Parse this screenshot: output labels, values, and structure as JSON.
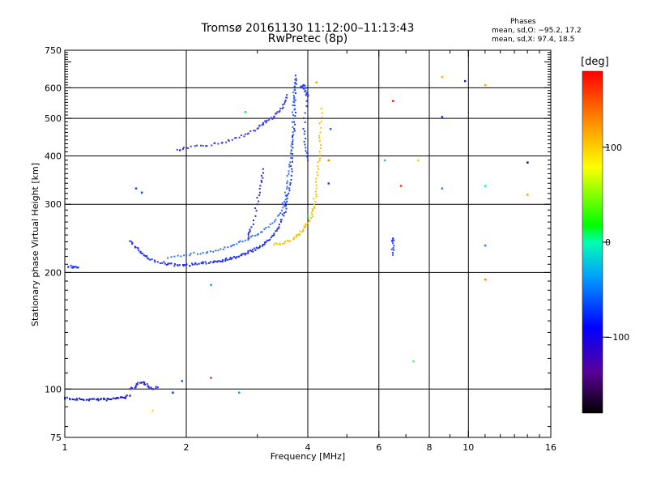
{
  "header": {
    "title_line1": "Tromsø 20161130 11:12:00–11:13:43",
    "title_line2": "RwPretec (8p)",
    "phases_heading": "Phases",
    "phases_o": "mean, sd,O: −95.2, 17.2",
    "phases_x": "mean, sd,X:  97.4, 18.5"
  },
  "colorbar": {
    "label": "[deg]",
    "ticks": [
      "100",
      "0",
      "−100"
    ],
    "tick_values": [
      100,
      0,
      -100
    ],
    "range": [
      -180,
      180
    ]
  },
  "chart_data": {
    "type": "scatter",
    "xlabel": "Frequency [MHz]",
    "ylabel": "Stationary phase Virtual Height [km]",
    "xscale": "log",
    "yscale": "log",
    "xlim": [
      1,
      16
    ],
    "ylim": [
      75,
      750
    ],
    "x_ticks": [
      1,
      2,
      4,
      6,
      8,
      10,
      16
    ],
    "x_tick_labels": [
      "1",
      "2",
      "4",
      "6",
      "8",
      "10",
      "16"
    ],
    "y_ticks": [
      75,
      100,
      200,
      300,
      400,
      500,
      600,
      750
    ],
    "y_tick_labels": [
      "75",
      "100",
      "200",
      "300",
      "400",
      "500",
      "600",
      "750"
    ],
    "grid": true,
    "traces": [
      {
        "color": "#1515e6",
        "points": [
          [
            1.0,
            95
          ],
          [
            1.05,
            94
          ],
          [
            1.1,
            94
          ],
          [
            1.15,
            94
          ],
          [
            1.2,
            94
          ],
          [
            1.25,
            94
          ],
          [
            1.3,
            94
          ],
          [
            1.35,
            95
          ],
          [
            1.4,
            95
          ],
          [
            1.45,
            96
          ]
        ]
      },
      {
        "color": "#2a2ae8",
        "points": [
          [
            1.45,
            100
          ],
          [
            1.5,
            102
          ],
          [
            1.55,
            104
          ],
          [
            1.6,
            103
          ],
          [
            1.65,
            100
          ],
          [
            1.7,
            101
          ]
        ]
      },
      {
        "color": "#1a3bff",
        "points": [
          [
            1.02,
            207
          ],
          [
            1.05,
            207
          ],
          [
            1.08,
            206
          ]
        ]
      },
      {
        "color": "#1f2ff0",
        "points": [
          [
            1.45,
            241
          ],
          [
            1.5,
            232
          ],
          [
            1.55,
            224
          ],
          [
            1.6,
            218
          ],
          [
            1.7,
            213
          ],
          [
            1.8,
            210
          ],
          [
            1.9,
            209
          ],
          [
            2.0,
            209
          ],
          [
            2.1,
            210
          ],
          [
            2.2,
            211
          ],
          [
            2.3,
            213
          ],
          [
            2.4,
            214
          ],
          [
            2.5,
            216
          ],
          [
            2.6,
            218
          ],
          [
            2.7,
            220
          ],
          [
            2.8,
            224
          ],
          [
            2.9,
            227
          ],
          [
            3.0,
            231
          ],
          [
            3.1,
            236
          ],
          [
            3.2,
            242
          ],
          [
            3.3,
            252
          ],
          [
            3.4,
            266
          ],
          [
            3.5,
            285
          ],
          [
            3.55,
            305
          ],
          [
            3.6,
            330
          ],
          [
            3.65,
            370
          ],
          [
            3.67,
            420
          ],
          [
            3.7,
            470
          ],
          [
            3.71,
            540
          ],
          [
            3.72,
            600
          ],
          [
            3.73,
            645
          ]
        ]
      },
      {
        "color": "#2c6bff",
        "points": [
          [
            1.8,
            218
          ],
          [
            2.0,
            222
          ],
          [
            2.2,
            225
          ],
          [
            2.4,
            228
          ],
          [
            2.6,
            235
          ],
          [
            2.8,
            242
          ],
          [
            3.0,
            250
          ],
          [
            3.2,
            262
          ],
          [
            3.4,
            282
          ],
          [
            3.5,
            305
          ],
          [
            3.55,
            340
          ],
          [
            3.6,
            380
          ],
          [
            3.65,
            430
          ],
          [
            3.68,
            500
          ],
          [
            3.7,
            560
          ],
          [
            3.72,
            630
          ]
        ]
      },
      {
        "color": "#3a3ae8",
        "points": [
          [
            1.9,
            415
          ],
          [
            2.0,
            420
          ],
          [
            2.2,
            425
          ],
          [
            2.4,
            430
          ],
          [
            2.6,
            440
          ],
          [
            2.8,
            455
          ],
          [
            3.0,
            470
          ],
          [
            3.1,
            485
          ],
          [
            3.2,
            495
          ],
          [
            3.3,
            505
          ],
          [
            3.4,
            520
          ],
          [
            3.5,
            545
          ],
          [
            3.55,
            575
          ]
        ]
      },
      {
        "color": "#2828d0",
        "points": [
          [
            3.1,
            370
          ],
          [
            3.05,
            335
          ],
          [
            3.0,
            300
          ],
          [
            2.9,
            262
          ],
          [
            2.85,
            245
          ]
        ]
      },
      {
        "color": "#f5c000",
        "points": [
          [
            3.3,
            236
          ],
          [
            3.5,
            238
          ],
          [
            3.7,
            245
          ],
          [
            3.8,
            250
          ],
          [
            3.9,
            258
          ],
          [
            4.0,
            268
          ],
          [
            4.1,
            282
          ],
          [
            4.15,
            300
          ],
          [
            4.2,
            330
          ],
          [
            4.25,
            370
          ],
          [
            4.28,
            410
          ],
          [
            4.3,
            460
          ],
          [
            4.32,
            530
          ]
        ]
      },
      {
        "color": "#1e40ff",
        "points": [
          [
            3.85,
            600
          ],
          [
            3.9,
            610
          ],
          [
            3.95,
            590
          ],
          [
            4.0,
            570
          ],
          [
            3.9,
            470
          ],
          [
            3.95,
            420
          ],
          [
            4.0,
            390
          ]
        ]
      },
      {
        "color": "#2040ff",
        "points": [
          [
            6.5,
            245
          ],
          [
            6.5,
            238
          ],
          [
            6.5,
            222
          ]
        ]
      }
    ],
    "scatter_points": [
      {
        "x": 1.5,
        "y": 330,
        "color": "#2040ff"
      },
      {
        "x": 1.55,
        "y": 322,
        "color": "#2040ff"
      },
      {
        "x": 1.65,
        "y": 88,
        "color": "#ffe000"
      },
      {
        "x": 1.85,
        "y": 98,
        "color": "#0040ff"
      },
      {
        "x": 1.95,
        "y": 105,
        "color": "#0060ff"
      },
      {
        "x": 2.3,
        "y": 107,
        "color": "#ff3000"
      },
      {
        "x": 2.7,
        "y": 98,
        "color": "#00a0ff"
      },
      {
        "x": 2.3,
        "y": 186,
        "color": "#00c0c0"
      },
      {
        "x": 2.8,
        "y": 520,
        "color": "#00ff00"
      },
      {
        "x": 4.0,
        "y": 280,
        "color": "#00ff60"
      },
      {
        "x": 4.5,
        "y": 340,
        "color": "#2040ff"
      },
      {
        "x": 4.5,
        "y": 390,
        "color": "#ff8000"
      },
      {
        "x": 4.2,
        "y": 620,
        "color": "#ffa000"
      },
      {
        "x": 4.55,
        "y": 470,
        "color": "#2060ff"
      },
      {
        "x": 6.2,
        "y": 390,
        "color": "#40b0ff"
      },
      {
        "x": 6.5,
        "y": 555,
        "color": "#ff2000"
      },
      {
        "x": 6.8,
        "y": 335,
        "color": "#ff4000"
      },
      {
        "x": 7.5,
        "y": 390,
        "color": "#ffd000"
      },
      {
        "x": 7.3,
        "y": 118,
        "color": "#40ff60"
      },
      {
        "x": 8.6,
        "y": 640,
        "color": "#ffb000"
      },
      {
        "x": 8.6,
        "y": 505,
        "color": "#1040ff"
      },
      {
        "x": 8.6,
        "y": 330,
        "color": "#2080ff"
      },
      {
        "x": 9.8,
        "y": 625,
        "color": "#2020c0"
      },
      {
        "x": 11.0,
        "y": 610,
        "color": "#ffa000"
      },
      {
        "x": 11.0,
        "y": 335,
        "color": "#00ffc0"
      },
      {
        "x": 11.0,
        "y": 235,
        "color": "#2080ff"
      },
      {
        "x": 11.0,
        "y": 192,
        "color": "#ff8000"
      },
      {
        "x": 14.0,
        "y": 385,
        "color": "#101080"
      },
      {
        "x": 14.0,
        "y": 318,
        "color": "#ffa000"
      }
    ]
  }
}
